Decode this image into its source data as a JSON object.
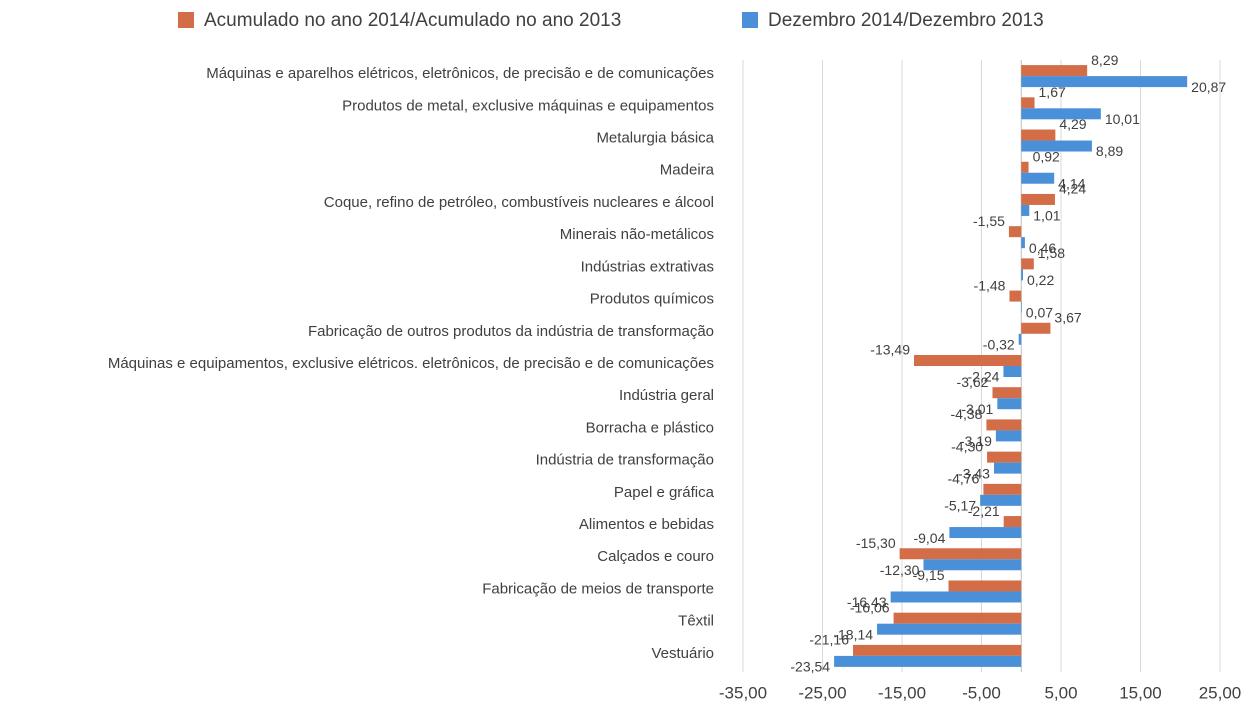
{
  "chart_data": {
    "type": "hbar",
    "categories": [
      "Máquinas e aparelhos elétricos, eletrônicos, de precisão e de comunicações",
      "Produtos de metal, exclusive máquinas e equipamentos",
      "Metalurgia básica",
      "Madeira",
      "Coque, refino de petróleo, combustíveis nucleares e álcool",
      "Minerais não-metálicos",
      "Indústrias extrativas",
      "Produtos químicos",
      "Fabricação de outros produtos da indústria de transformação",
      "Máquinas e equipamentos, exclusive elétricos. eletrônicos, de precisão e de comunicações",
      "Indústria geral",
      "Borracha e plástico",
      "Indústria de transformação",
      "Papel e gráfica",
      "Alimentos e bebidas",
      "Calçados e couro",
      "Fabricação de meios de transporte",
      "Têxtil",
      "Vestuário"
    ],
    "series": [
      {
        "name": "Acumulado no ano 2014/Acumulado no ano 2013",
        "color": "#d26d48",
        "values": [
          8.29,
          1.67,
          4.29,
          0.92,
          4.24,
          -1.55,
          1.58,
          -1.48,
          3.67,
          -13.49,
          -3.62,
          -4.38,
          -4.3,
          -4.76,
          -2.21,
          -15.3,
          -9.15,
          -16.06,
          -21.16
        ],
        "value_labels": [
          "8,29",
          "1,67",
          "4,29",
          "0,92",
          "4,24",
          "-1,55",
          "1,58",
          "-1,48",
          "3,67",
          "-13,49",
          "-3,62",
          "-4,38",
          "-4,30",
          "-4,76",
          "-2,21",
          "-15,30",
          "-9,15",
          "-16,06",
          "-21,16"
        ]
      },
      {
        "name": "Dezembro 2014/Dezembro 2013",
        "color": "#4a90d9",
        "values": [
          20.87,
          10.01,
          8.89,
          4.14,
          1.01,
          0.46,
          0.22,
          0.07,
          -0.32,
          -2.24,
          -3.01,
          -3.19,
          -3.43,
          -5.17,
          -9.04,
          -12.3,
          -16.43,
          -18.14,
          -23.54
        ],
        "value_labels": [
          "20,87",
          "10,01",
          "8,89",
          "4,14",
          "1,01",
          "0,46",
          "0,22",
          "0,07",
          "-0,32",
          "-2,24",
          "-3,01",
          "-3,19",
          "-3,43",
          "-5,17",
          "-9,04",
          "-12,30",
          "-16,43",
          "-18,14",
          "-23,54"
        ]
      }
    ],
    "xlim": [
      -35,
      25
    ],
    "xticks": [
      {
        "value": -35,
        "label": "-35,00"
      },
      {
        "value": -25,
        "label": "-25,00"
      },
      {
        "value": -15,
        "label": "-15,00"
      },
      {
        "value": -5,
        "label": "-5,00"
      },
      {
        "value": 5,
        "label": "5,00"
      },
      {
        "value": 15,
        "label": "15,00"
      },
      {
        "value": 25,
        "label": "25,00"
      }
    ],
    "grid": true
  }
}
